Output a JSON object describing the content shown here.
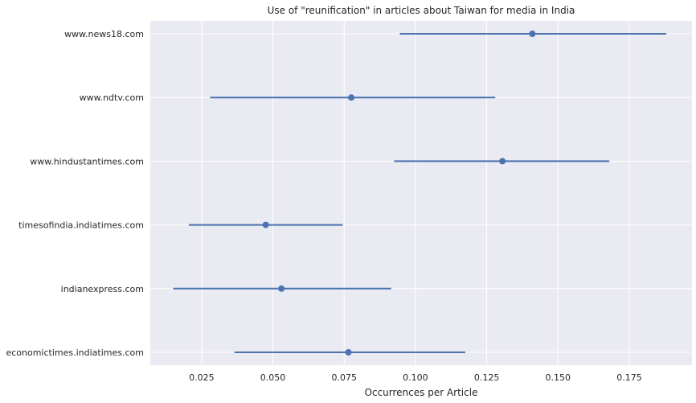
{
  "chart_data": {
    "type": "errorbar",
    "title": "Use of \"reunification\" in articles about Taiwan for media in India",
    "xlabel": "Occurrences per Article",
    "ylabel": "",
    "xlim": [
      0.007,
      0.197
    ],
    "xticks": [
      "0.025",
      "0.050",
      "0.075",
      "0.100",
      "0.125",
      "0.150",
      "0.175"
    ],
    "grid": true,
    "colors": {
      "background": "#eaeaf2",
      "grid": "#ffffff",
      "series": "#4c72b0"
    },
    "categories": [
      "www.news18.com",
      "www.ndtv.com",
      "www.hindustantimes.com",
      "timesofindia.indiatimes.com",
      "indianexpress.com",
      "economictimes.indiatimes.com"
    ],
    "values": [
      0.141,
      0.0775,
      0.1305,
      0.0475,
      0.053,
      0.0765
    ],
    "lower": [
      0.0945,
      0.028,
      0.0925,
      0.0205,
      0.015,
      0.0365
    ],
    "upper": [
      0.188,
      0.128,
      0.168,
      0.0745,
      0.0915,
      0.1175
    ]
  }
}
